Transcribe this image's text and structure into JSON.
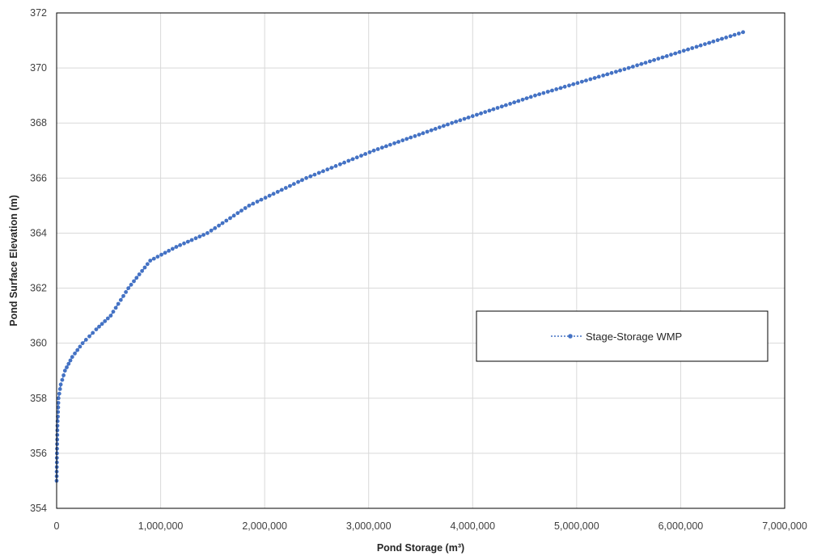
{
  "chart_data": {
    "type": "scatter",
    "title": "",
    "xlabel": "Pond Storage (m³)",
    "ylabel": "Pond Surface Elevation (m)",
    "xlim": [
      0,
      7000000
    ],
    "ylim": [
      354,
      372
    ],
    "x_ticks": [
      "0",
      "1,000,000",
      "2,000,000",
      "3,000,000",
      "4,000,000",
      "5,000,000",
      "6,000,000",
      "7,000,000"
    ],
    "y_ticks": [
      "354",
      "356",
      "358",
      "360",
      "362",
      "364",
      "366",
      "368",
      "370",
      "372"
    ],
    "grid": true,
    "legend_position": "center-right",
    "colors": {
      "series": "#4472c4",
      "grid": "#d9d9d9",
      "frame": "#000000"
    },
    "series": [
      {
        "name": "Stage-Storage WMP",
        "style": "dotted line with circle markers",
        "points": [
          [
            0,
            355.0
          ],
          [
            3000,
            356.0
          ],
          [
            8000,
            357.0
          ],
          [
            18000,
            358.0
          ],
          [
            40000,
            358.5
          ],
          [
            80000,
            359.0
          ],
          [
            150000,
            359.5
          ],
          [
            250000,
            360.0
          ],
          [
            380000,
            360.5
          ],
          [
            520000,
            361.0
          ],
          [
            690000,
            362.0
          ],
          [
            900000,
            363.0
          ],
          [
            1150000,
            363.5
          ],
          [
            1450000,
            364.0
          ],
          [
            1850000,
            365.0
          ],
          [
            2400000,
            366.0
          ],
          [
            3050000,
            367.0
          ],
          [
            3800000,
            368.0
          ],
          [
            4600000,
            369.0
          ],
          [
            5500000,
            370.0
          ],
          [
            6600000,
            371.3
          ]
        ]
      }
    ]
  }
}
